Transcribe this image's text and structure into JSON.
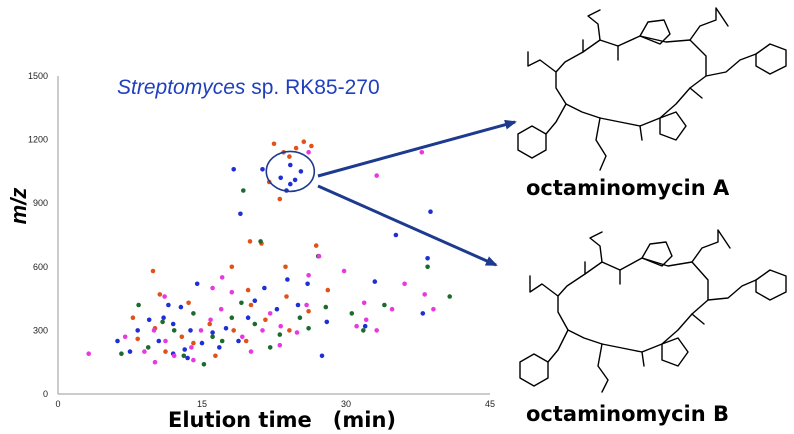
{
  "organism": {
    "genus": "Streptomyces",
    "rest": " sp. RK85-270"
  },
  "compounds": {
    "a": "octaminomycin A",
    "b": "octaminomycin B"
  },
  "colors": {
    "blue": "#1f2fd6",
    "orange": "#e0521a",
    "green": "#1c6b2c",
    "magenta": "#e838e0",
    "arrow": "#1d3a8f",
    "organism_text": "#1f3fbf"
  },
  "chart_data": {
    "type": "scatter",
    "xlabel": "Elution time　(min)",
    "ylabel": "m/z",
    "xlim": [
      0,
      45
    ],
    "ylim": [
      0,
      1500
    ],
    "xticks": [
      0,
      15,
      30,
      45
    ],
    "yticks": [
      0,
      300,
      600,
      900,
      1200,
      1500
    ],
    "grid": false,
    "highlight": {
      "x": 24.2,
      "y": 1050,
      "note": "circled cluster"
    },
    "series": [
      {
        "color": "blue",
        "points": [
          [
            21.3,
            1060
          ],
          [
            23.2,
            1020
          ],
          [
            23.8,
            960
          ],
          [
            24.2,
            990
          ],
          [
            24.7,
            1010
          ],
          [
            25.3,
            1050
          ],
          [
            24.2,
            1080
          ],
          [
            18.3,
            1060
          ],
          [
            19,
            850
          ],
          [
            26,
            520
          ],
          [
            33,
            530
          ],
          [
            35.2,
            750
          ],
          [
            38.8,
            860
          ],
          [
            38.5,
            640
          ],
          [
            38,
            380
          ],
          [
            32,
            320
          ],
          [
            28,
            340
          ],
          [
            11,
            360
          ],
          [
            12,
            330
          ],
          [
            12.8,
            410
          ],
          [
            13.8,
            300
          ],
          [
            9.5,
            350
          ],
          [
            11.5,
            420
          ],
          [
            12,
            190
          ],
          [
            13.5,
            170
          ],
          [
            15,
            240
          ],
          [
            16.1,
            290
          ],
          [
            17.5,
            310
          ],
          [
            18.8,
            250
          ],
          [
            19.8,
            360
          ],
          [
            21.5,
            500
          ],
          [
            22.8,
            400
          ],
          [
            23.9,
            540
          ],
          [
            14.5,
            520
          ],
          [
            13.2,
            210
          ],
          [
            10.5,
            250
          ],
          [
            8.3,
            300
          ],
          [
            16.8,
            220
          ],
          [
            20.5,
            440
          ],
          [
            25,
            420
          ],
          [
            27.5,
            180
          ],
          [
            6.2,
            250
          ],
          [
            7.5,
            200
          ]
        ]
      },
      {
        "color": "orange",
        "points": [
          [
            23.5,
            1140
          ],
          [
            24.8,
            1160
          ],
          [
            25.6,
            1190
          ],
          [
            26.4,
            1170
          ],
          [
            22.5,
            1180
          ],
          [
            24.1,
            1120
          ],
          [
            22,
            1000
          ],
          [
            23.1,
            920
          ],
          [
            20,
            720
          ],
          [
            21.2,
            710
          ],
          [
            26.9,
            700
          ],
          [
            23.7,
            600
          ],
          [
            18.1,
            600
          ],
          [
            19.8,
            490
          ],
          [
            23.8,
            460
          ],
          [
            26.1,
            390
          ],
          [
            20.1,
            420
          ],
          [
            9.9,
            580
          ],
          [
            10.6,
            470
          ],
          [
            7.8,
            360
          ],
          [
            10.1,
            310
          ],
          [
            11.2,
            200
          ],
          [
            14.1,
            240
          ],
          [
            15.8,
            330
          ],
          [
            16.4,
            180
          ],
          [
            18.3,
            300
          ],
          [
            19.6,
            250
          ],
          [
            21.6,
            350
          ],
          [
            24.1,
            300
          ],
          [
            28.1,
            490
          ],
          [
            12.9,
            270
          ],
          [
            13.6,
            430
          ],
          [
            8.3,
            260
          ]
        ]
      },
      {
        "color": "green",
        "points": [
          [
            19.3,
            960
          ],
          [
            21.1,
            720
          ],
          [
            27.1,
            650
          ],
          [
            38.5,
            600
          ],
          [
            40.8,
            460
          ],
          [
            34,
            420
          ],
          [
            30.6,
            380
          ],
          [
            31.8,
            300
          ],
          [
            27.9,
            410
          ],
          [
            19.1,
            430
          ],
          [
            16.1,
            270
          ],
          [
            12.1,
            300
          ],
          [
            9.4,
            220
          ],
          [
            6.6,
            190
          ],
          [
            10.9,
            340
          ],
          [
            13.1,
            180
          ],
          [
            15.2,
            140
          ],
          [
            17.1,
            250
          ],
          [
            18.1,
            360
          ],
          [
            20.5,
            330
          ],
          [
            23.1,
            280
          ],
          [
            22.1,
            220
          ],
          [
            25.2,
            360
          ],
          [
            26.1,
            310
          ],
          [
            14.1,
            380
          ],
          [
            8.4,
            420
          ]
        ]
      },
      {
        "color": "magenta",
        "points": [
          [
            3.2,
            190
          ],
          [
            7,
            270
          ],
          [
            9,
            200
          ],
          [
            10,
            300
          ],
          [
            11.2,
            250
          ],
          [
            12.1,
            180
          ],
          [
            13.9,
            220
          ],
          [
            14.9,
            300
          ],
          [
            15.9,
            350
          ],
          [
            17,
            400
          ],
          [
            18.1,
            480
          ],
          [
            17.1,
            550
          ],
          [
            16.1,
            500
          ],
          [
            19.2,
            270
          ],
          [
            20.1,
            200
          ],
          [
            21.3,
            300
          ],
          [
            22.1,
            380
          ],
          [
            23.2,
            320
          ],
          [
            24.9,
            290
          ],
          [
            25.9,
            420
          ],
          [
            26.1,
            1140
          ],
          [
            27.2,
            650
          ],
          [
            26.1,
            560
          ],
          [
            29.8,
            580
          ],
          [
            31.1,
            320
          ],
          [
            32.1,
            350
          ],
          [
            33.2,
            300
          ],
          [
            31.9,
            430
          ],
          [
            34.8,
            400
          ],
          [
            36.1,
            520
          ],
          [
            38.2,
            470
          ],
          [
            39.1,
            400
          ],
          [
            37.9,
            1140
          ],
          [
            33.2,
            1030
          ],
          [
            23.1,
            230
          ],
          [
            11.1,
            460
          ],
          [
            10.1,
            150
          ],
          [
            14.1,
            160
          ]
        ]
      }
    ]
  }
}
